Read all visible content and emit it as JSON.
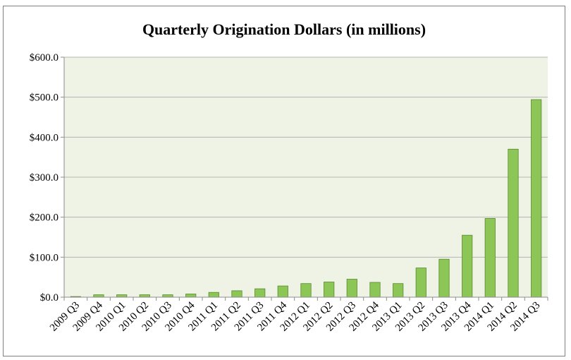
{
  "chart_data": {
    "type": "bar",
    "title": "Quarterly Origination Dollars (in millions)",
    "xlabel": "",
    "ylabel": "",
    "categories": [
      "2009 Q3",
      "2009 Q4",
      "2010 Q1",
      "2010 Q2",
      "2010 Q3",
      "2010 Q4",
      "2011 Q1",
      "2011 Q2",
      "2011 Q3",
      "2011 Q4",
      "2012 Q1",
      "2012 Q2",
      "2012 Q3",
      "2012 Q4",
      "2013 Q1",
      "2013 Q2",
      "2013 Q3",
      "2013 Q4",
      "2014 Q1",
      "2014 Q2",
      "2014 Q3"
    ],
    "values": [
      1.5,
      6,
      6,
      6,
      6,
      8,
      12,
      16,
      21,
      28,
      34,
      38,
      45,
      37,
      34,
      73,
      95,
      155,
      197,
      370,
      494
    ],
    "ylim": [
      0,
      600
    ],
    "yticks": [
      0,
      100,
      200,
      300,
      400,
      500,
      600
    ],
    "ytick_labels": [
      "$0.0",
      "$100.0",
      "$200.0",
      "$300.0",
      "$400.0",
      "$500.0",
      "$600.0"
    ],
    "grid": true,
    "legend": "none",
    "colors": {
      "bar_fill": "#8cc657",
      "bar_stroke": "#5a8a2a",
      "plot_bg": "#eef3e6",
      "grid": "#b5b5b5",
      "axis": "#8c8c8c"
    }
  }
}
